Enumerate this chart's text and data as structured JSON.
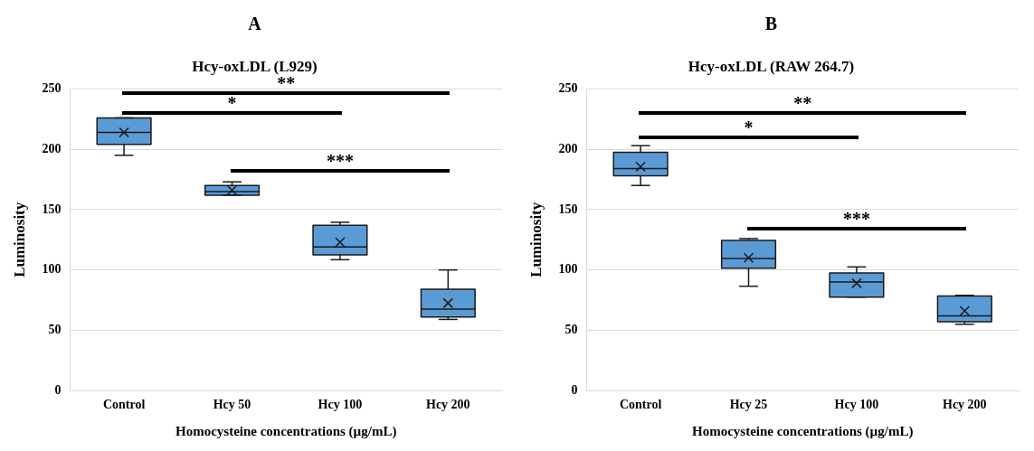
{
  "chart_data": [
    {
      "type": "box",
      "title": "A",
      "subtitle": "Hcy-oxLDL (L929)",
      "xlabel": "Homocysteine concentrations (µg/mL)",
      "ylabel": "Luminosity",
      "categories": [
        "Control",
        "Hcy 50",
        "Hcy 100",
        "Hcy 200"
      ],
      "color": "#5b9bd5",
      "ylim": [
        0,
        250
      ],
      "yticks": [
        0,
        50,
        100,
        150,
        200,
        250
      ],
      "grid": "y",
      "legend": false,
      "boxes": [
        {
          "low": 195,
          "q1": 204,
          "median": 214,
          "q3": 226,
          "high": 226,
          "mean": 214
        },
        {
          "low": 162,
          "q1": 162,
          "median": 165,
          "q3": 170,
          "high": 173,
          "mean": 166
        },
        {
          "low": 108.5,
          "q1": 112.5,
          "median": 119,
          "q3": 137,
          "high": 139.5,
          "mean": 123
        },
        {
          "low": 59,
          "q1": 61,
          "median": 67.5,
          "q3": 84,
          "high": 100,
          "mean": 72.5
        }
      ],
      "annotations": [
        "**",
        "*",
        "***"
      ]
    },
    {
      "type": "box",
      "title": "B",
      "subtitle": "Hcy-oxLDL (RAW 264.7)",
      "xlabel": "Homocysteine concentrations (µg/mL)",
      "ylabel": "Luminosity",
      "categories": [
        "Control",
        "Hcy 25",
        "Hcy 100",
        "Hcy 200"
      ],
      "color": "#5b9bd5",
      "ylim": [
        0,
        250
      ],
      "yticks": [
        0,
        50,
        100,
        150,
        200,
        250
      ],
      "grid": "y",
      "legend": false,
      "boxes": [
        {
          "low": 170,
          "q1": 178,
          "median": 184,
          "q3": 197.5,
          "high": 203,
          "mean": 185.5
        },
        {
          "low": 86.5,
          "q1": 101.5,
          "median": 109.5,
          "q3": 124.5,
          "high": 126,
          "mean": 110
        },
        {
          "low": 77.5,
          "q1": 77.5,
          "median": 90,
          "q3": 97.5,
          "high": 102.5,
          "mean": 89
        },
        {
          "low": 55,
          "q1": 57,
          "median": 62,
          "q3": 78.5,
          "high": 79,
          "mean": 66
        }
      ],
      "annotations": [
        "**",
        "*",
        "***"
      ]
    }
  ]
}
